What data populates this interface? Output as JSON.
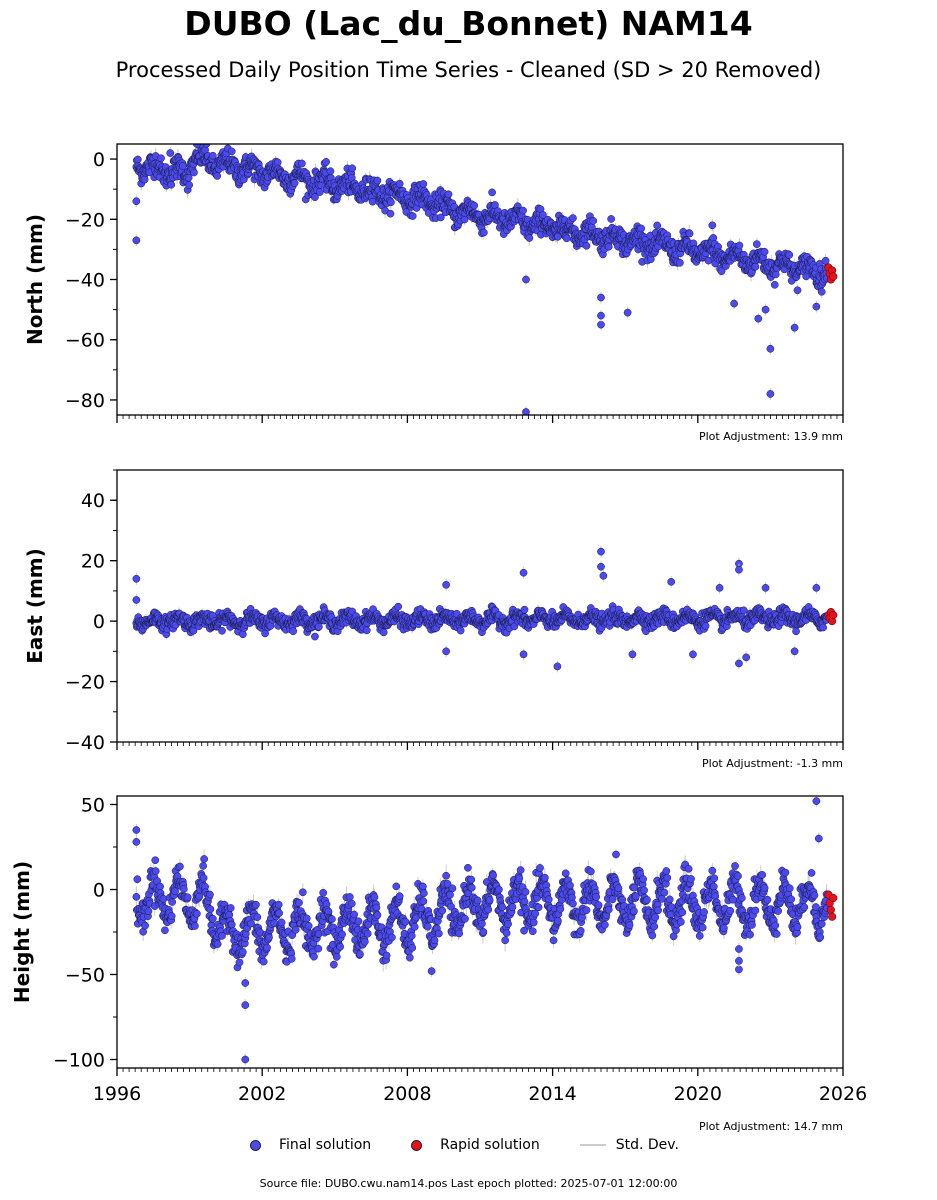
{
  "header": {
    "title": "DUBO (Lac_du_Bonnet) NAM14",
    "subtitle": "Processed Daily Position Time Series - Cleaned (SD > 20 Removed)"
  },
  "legend": {
    "final_label": "Final solution",
    "rapid_label": "Rapid solution",
    "std_label": "Std. Dev."
  },
  "footer": {
    "source": "Source file: DUBO.cwu.nam14.pos  Last epoch plotted: 2025-07-01 12:00:00"
  },
  "colors": {
    "final": "#4a4af0",
    "rapid": "#e8101a",
    "std": "#cccccc"
  },
  "chart_data": [
    {
      "type": "scatter",
      "ylabel": "North (mm)",
      "xlim": [
        1996,
        2026
      ],
      "ylim": [
        -85,
        5
      ],
      "yticks": [
        0,
        -20,
        -40,
        -60,
        -80
      ],
      "ytick_labels": [
        "0",
        "−20",
        "−40",
        "−60",
        "−80"
      ],
      "adjustment": "Plot Adjustment: 13.9 mm",
      "trend": [
        [
          1996.8,
          -2
        ],
        [
          1999.0,
          -5
        ],
        [
          1999.05,
          0
        ],
        [
          2009.0,
          -14
        ],
        [
          2009.8,
          -17
        ],
        [
          2025.5,
          -38
        ]
      ],
      "outliers": [
        [
          1996.8,
          -27
        ],
        [
          1996.8,
          -14
        ],
        [
          1998.2,
          2
        ],
        [
          1999.3,
          5
        ],
        [
          2012.9,
          -84
        ],
        [
          2012.9,
          -40
        ],
        [
          2016.0,
          -55
        ],
        [
          2016.0,
          -52
        ],
        [
          2016.0,
          -46
        ],
        [
          2017.1,
          -51
        ],
        [
          2020.6,
          -22
        ],
        [
          2021.5,
          -48
        ],
        [
          2022.5,
          -53
        ],
        [
          2022.8,
          -50
        ],
        [
          2023.0,
          -63
        ],
        [
          2023.0,
          -78
        ],
        [
          2024.0,
          -56
        ],
        [
          2024.9,
          -49
        ]
      ],
      "rapid": [
        [
          2025.4,
          -36
        ],
        [
          2025.45,
          -38
        ],
        [
          2025.5,
          -40
        ],
        [
          2025.55,
          -37
        ],
        [
          2025.6,
          -39
        ]
      ]
    },
    {
      "type": "scatter",
      "ylabel": "East (mm)",
      "xlim": [
        1996,
        2026
      ],
      "ylim": [
        -40,
        50
      ],
      "yticks": [
        40,
        20,
        0,
        -20,
        -40
      ],
      "ytick_labels": [
        "40",
        "20",
        "0",
        "−20",
        "−40"
      ],
      "adjustment": "Plot Adjustment: -1.3 mm",
      "trend": [
        [
          1996.8,
          0
        ],
        [
          2025.5,
          1
        ]
      ],
      "outliers": [
        [
          1996.8,
          14
        ],
        [
          1996.8,
          7
        ],
        [
          2009.6,
          12
        ],
        [
          2009.6,
          -10
        ],
        [
          2012.8,
          16
        ],
        [
          2012.8,
          -11
        ],
        [
          2014.2,
          -15
        ],
        [
          2016.0,
          23
        ],
        [
          2016.0,
          18
        ],
        [
          2016.1,
          15
        ],
        [
          2017.3,
          -11
        ],
        [
          2018.9,
          13
        ],
        [
          2019.8,
          -11
        ],
        [
          2020.9,
          11
        ],
        [
          2021.7,
          19
        ],
        [
          2021.7,
          17
        ],
        [
          2021.7,
          -14
        ],
        [
          2022.0,
          -12
        ],
        [
          2022.8,
          11
        ],
        [
          2024.0,
          -10
        ],
        [
          2024.9,
          11
        ]
      ],
      "rapid": [
        [
          2025.4,
          2
        ],
        [
          2025.45,
          1
        ],
        [
          2025.5,
          3
        ],
        [
          2025.55,
          0
        ],
        [
          2025.6,
          2
        ]
      ]
    },
    {
      "type": "scatter",
      "ylabel": "Height (mm)",
      "xlim": [
        1996,
        2026
      ],
      "ylim": [
        -105,
        55
      ],
      "yticks": [
        50,
        0,
        -50,
        -100
      ],
      "ytick_labels": [
        "50",
        "0",
        "−50",
        "−100"
      ],
      "xticks": [
        1996,
        2002,
        2008,
        2014,
        2020,
        2026
      ],
      "adjustment": "Plot Adjustment: 14.7 mm",
      "trend": [
        [
          1996.8,
          -5
        ],
        [
          1999.5,
          -5
        ],
        [
          2000.5,
          -25
        ],
        [
          2008.0,
          -20
        ],
        [
          2011.0,
          -8
        ],
        [
          2025.5,
          -8
        ]
      ],
      "outliers": [
        [
          1996.8,
          35
        ],
        [
          1996.8,
          28
        ],
        [
          2001.3,
          -100
        ],
        [
          2001.3,
          -68
        ],
        [
          2001.3,
          -55
        ],
        [
          2009.0,
          -48
        ],
        [
          2021.7,
          -47
        ],
        [
          2021.7,
          -42
        ],
        [
          2021.7,
          -35
        ],
        [
          2024.9,
          52
        ],
        [
          2025.0,
          30
        ]
      ],
      "rapid": [
        [
          2025.4,
          -3
        ],
        [
          2025.45,
          -8
        ],
        [
          2025.5,
          -12
        ],
        [
          2025.55,
          -16
        ],
        [
          2025.6,
          -5
        ]
      ]
    }
  ]
}
